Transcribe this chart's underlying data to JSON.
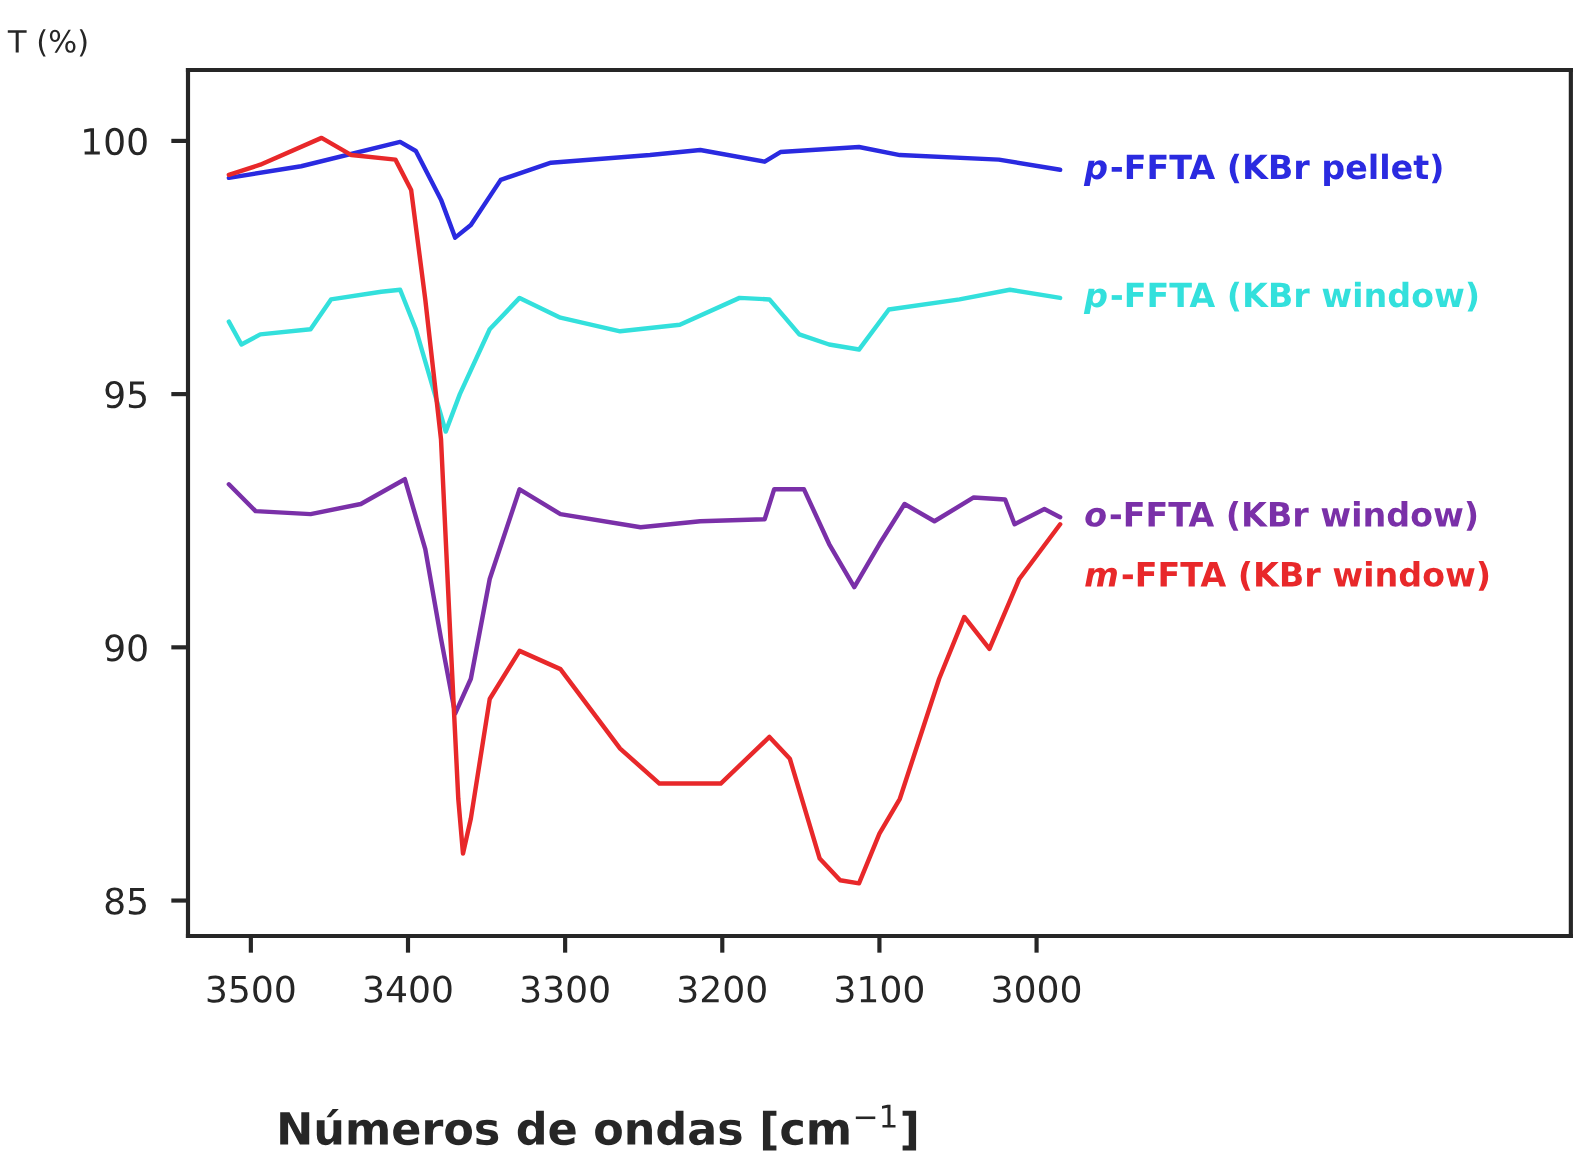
{
  "chart_data": {
    "type": "line",
    "xlabel": "Números de ondas [cm$^{−1}$]",
    "ylabel": "T (%)",
    "xlim": [
      3540,
      2660
    ],
    "ylim": [
      84.3,
      101.4
    ],
    "xticks": [
      3500,
      3400,
      3300,
      3200,
      3100,
      3000
    ],
    "yticks": [
      85,
      90,
      95,
      100
    ],
    "grid": false,
    "marker": "none",
    "line_style": "solid",
    "series": [
      {
        "name": "p-FFTA (KBr pellet)",
        "color": "#2a2ae0",
        "x": [
          3514,
          3468,
          3405,
          3395,
          3379,
          3370,
          3360,
          3341,
          3309,
          3246,
          3214,
          3173,
          3163,
          3113,
          3087,
          3024,
          2985
        ],
        "values": [
          99.27,
          99.5,
          99.98,
          99.8,
          98.84,
          98.09,
          98.34,
          99.23,
          99.57,
          99.72,
          99.82,
          99.59,
          99.78,
          99.88,
          99.72,
          99.63,
          99.43
        ]
      },
      {
        "name": "p-FFTA (KBr window)",
        "color": "#33e0dc",
        "x": [
          3514,
          3506,
          3494,
          3462,
          3449,
          3417,
          3405,
          3395,
          3382,
          3376,
          3367,
          3348,
          3329,
          3303,
          3265,
          3227,
          3189,
          3170,
          3151,
          3132,
          3113,
          3094,
          3049,
          3017,
          2985
        ],
        "values": [
          96.43,
          95.98,
          96.18,
          96.28,
          96.87,
          97.02,
          97.06,
          96.28,
          94.9,
          94.26,
          95.0,
          96.28,
          96.9,
          96.51,
          96.24,
          96.37,
          96.9,
          96.87,
          96.18,
          95.98,
          95.88,
          96.67,
          96.87,
          97.06,
          96.9
        ]
      },
      {
        "name": "o-FFTA (KBr window)",
        "color": "#7a30a8",
        "x": [
          3514,
          3497,
          3462,
          3430,
          3402,
          3389,
          3379,
          3370,
          3360,
          3348,
          3329,
          3303,
          3252,
          3214,
          3173,
          3167,
          3148,
          3132,
          3116,
          3100,
          3084,
          3065,
          3040,
          3020,
          3014,
          2995,
          2985
        ],
        "values": [
          93.22,
          92.69,
          92.63,
          92.83,
          93.32,
          91.94,
          90.17,
          88.69,
          89.38,
          91.35,
          93.12,
          92.63,
          92.37,
          92.49,
          92.53,
          93.12,
          93.12,
          92.04,
          91.19,
          92.04,
          92.83,
          92.49,
          92.96,
          92.92,
          92.43,
          92.73,
          92.57
        ]
      },
      {
        "name": "m-FFTA (KBr window)",
        "color": "#e8282a",
        "x": [
          3514,
          3494,
          3455,
          3436,
          3408,
          3398,
          3389,
          3379,
          3373,
          3368,
          3365,
          3360,
          3348,
          3329,
          3303,
          3265,
          3240,
          3201,
          3170,
          3157,
          3138,
          3125,
          3113,
          3100,
          3087,
          3062,
          3046,
          3030,
          3011,
          2985
        ],
        "values": [
          99.33,
          99.53,
          100.06,
          99.72,
          99.63,
          99.03,
          96.87,
          94.11,
          90.17,
          87.01,
          85.93,
          86.62,
          88.98,
          89.93,
          89.57,
          88.0,
          87.31,
          87.31,
          88.23,
          87.8,
          85.83,
          85.4,
          85.34,
          86.32,
          87.01,
          89.38,
          90.6,
          89.97,
          91.35,
          92.43
        ]
      }
    ]
  }
}
